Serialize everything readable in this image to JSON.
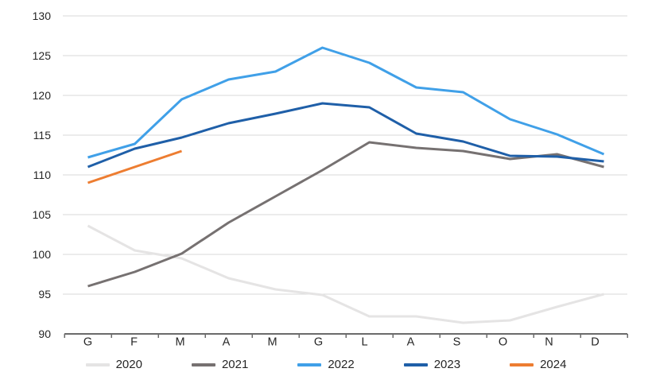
{
  "chart_data": {
    "type": "line",
    "title": "",
    "xlabel": "",
    "ylabel": "",
    "categories": [
      "G",
      "F",
      "M",
      "A",
      "M",
      "G",
      "L",
      "A",
      "S",
      "O",
      "N",
      "D"
    ],
    "y_axis": {
      "min": 90,
      "max": 130,
      "step": 5,
      "tick_labels": [
        "90",
        "95",
        "100",
        "105",
        "110",
        "115",
        "120",
        "125",
        "130"
      ]
    },
    "grid": true,
    "legend_position": "bottom",
    "series": [
      {
        "name": "2020",
        "color": "#E5E4E4",
        "values": [
          103.6,
          100.5,
          99.5,
          97.0,
          95.6,
          94.9,
          92.2,
          92.2,
          91.4,
          91.7,
          93.4,
          95.0
        ]
      },
      {
        "name": "2021",
        "color": "#767171",
        "values": [
          96.0,
          97.8,
          100.1,
          104.0,
          107.3,
          110.6,
          114.1,
          113.4,
          113.0,
          112.0,
          112.6,
          111.0
        ]
      },
      {
        "name": "2022",
        "color": "#40A0E8",
        "values": [
          112.2,
          113.9,
          119.5,
          122.0,
          123.0,
          126.0,
          124.1,
          121.0,
          120.4,
          117.0,
          115.1,
          112.6
        ]
      },
      {
        "name": "2023",
        "color": "#1F5FA8",
        "values": [
          111.0,
          113.3,
          114.7,
          116.5,
          117.7,
          119.0,
          118.5,
          115.2,
          114.2,
          112.4,
          112.3,
          111.7
        ]
      },
      {
        "name": "2024",
        "color": "#ED7D31",
        "values": [
          109.0,
          111.0,
          113.0,
          null,
          null,
          null,
          null,
          null,
          null,
          null,
          null,
          null
        ]
      }
    ],
    "colors": {
      "gridline": "#D9D9D9",
      "axis_line": "#6B6B6B",
      "text": "#262626",
      "background": "#FFFFFF"
    }
  }
}
